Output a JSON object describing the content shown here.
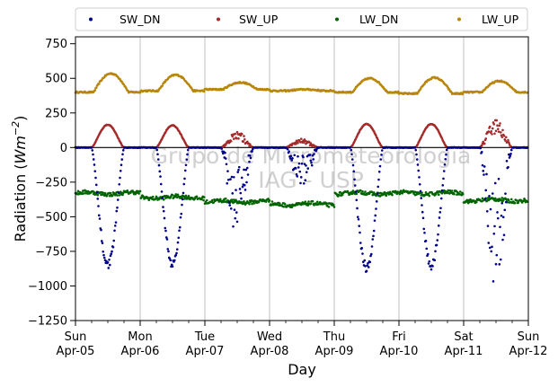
{
  "chart_data": {
    "type": "scatter",
    "xlabel": "Day",
    "ylabel_main": "Radiation (",
    "ylabel_unit_base": "Wm",
    "ylabel_unit_exp": "−2",
    "ylabel_close": ")",
    "ylim": [
      -1250,
      800
    ],
    "yticks": [
      -1250,
      -1000,
      -750,
      -500,
      -250,
      0,
      250,
      500,
      750
    ],
    "ytick_labels": [
      "−1250",
      "−1000",
      "−750",
      "−500",
      "−250",
      "0",
      "250",
      "500",
      "750"
    ],
    "xlim_days": [
      0,
      7
    ],
    "xtick_labels": [
      [
        "Sun",
        "Apr-05"
      ],
      [
        "Mon",
        "Apr-06"
      ],
      [
        "Tue",
        "Apr-07"
      ],
      [
        "Wed",
        "Apr-08"
      ],
      [
        "Thu",
        "Apr-09"
      ],
      [
        "Fri",
        "Apr-10"
      ],
      [
        "Sat",
        "Apr-11"
      ],
      [
        "Sun",
        "Apr-12"
      ]
    ],
    "vertical_grid": true,
    "zero_line": true,
    "legend_placement": "top, outside plot, single row",
    "watermark": [
      "Grupo de Micrometeorologia",
      "IAG - USP"
    ],
    "series": [
      {
        "name": "SW_DN",
        "color": "#00008b",
        "daily_min": [
          -880,
          -870,
          -620,
          -280,
          -900,
          -880,
          -1000
        ]
      },
      {
        "name": "SW_UP",
        "color": "#a52a2a",
        "daily_max": [
          165,
          160,
          110,
          60,
          170,
          170,
          200
        ]
      },
      {
        "name": "LW_DN",
        "color": "#006400",
        "daily_level": [
          -330,
          -360,
          -390,
          -410,
          -330,
          -330,
          -380
        ]
      },
      {
        "name": "LW_UP",
        "color": "#b8860b",
        "daily_night": [
          400,
          410,
          420,
          410,
          400,
          390,
          400
        ],
        "daily_peak": [
          535,
          525,
          470,
          420,
          500,
          505,
          480
        ]
      }
    ]
  }
}
